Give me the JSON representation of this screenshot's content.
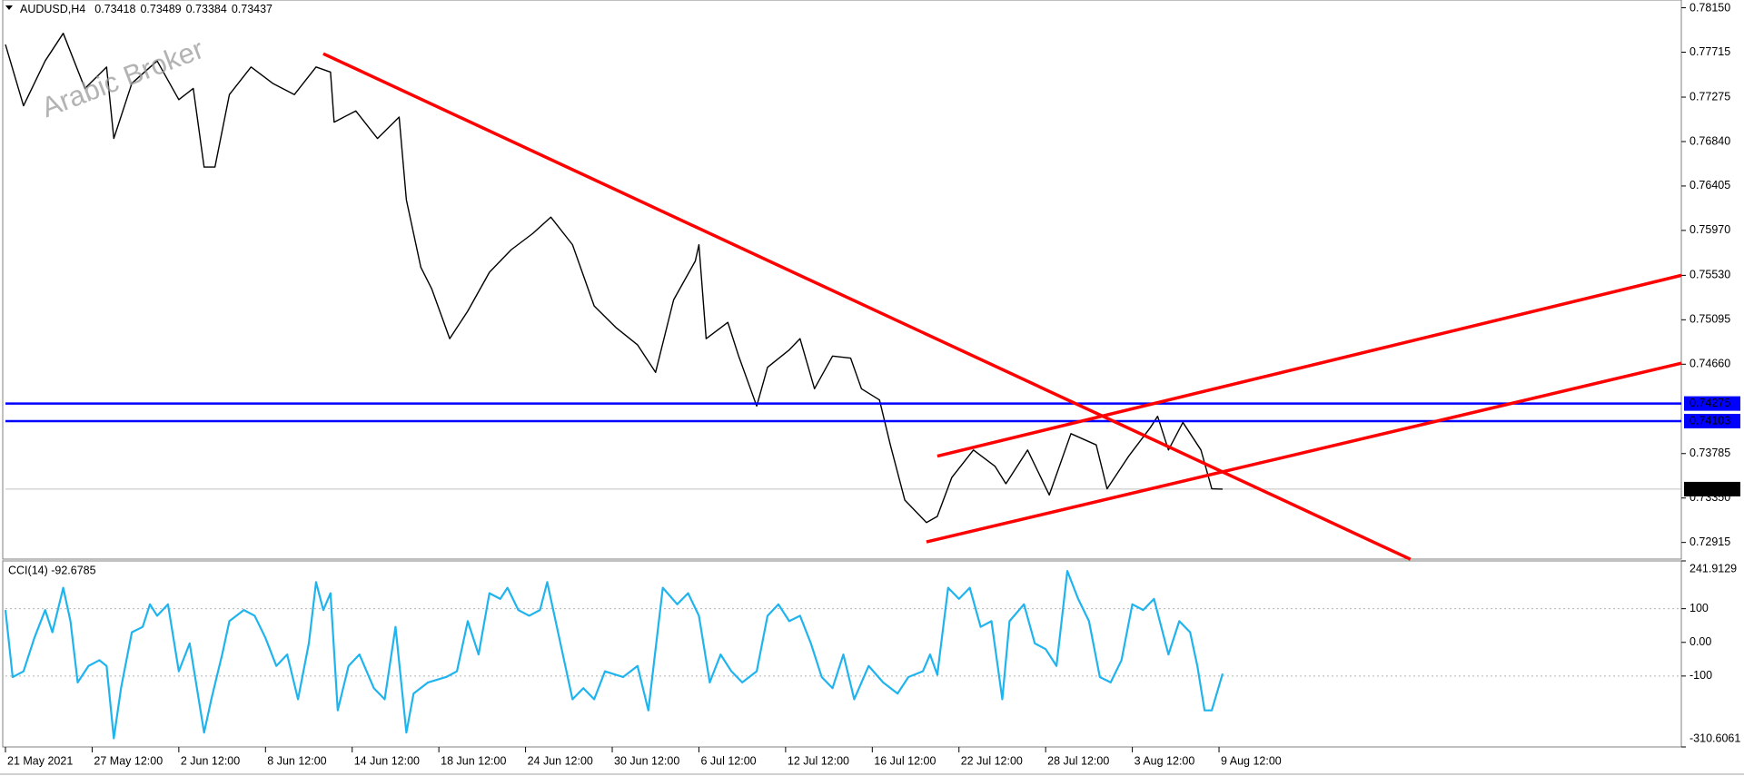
{
  "chart_data": [
    {
      "type": "line",
      "symbol": "AUDUSD,H4",
      "header_values": [
        0.73418,
        0.73489,
        0.73384,
        0.73437
      ],
      "watermark": "Arabic Broker",
      "x": [
        0,
        5,
        11,
        16,
        22,
        28,
        30,
        35,
        42,
        48,
        52,
        55,
        58,
        62,
        68,
        74,
        80,
        86,
        90,
        91,
        97,
        103,
        109,
        111,
        115,
        118,
        123,
        128,
        134,
        140,
        146,
        151,
        157,
        163,
        169,
        175,
        180,
        185,
        191,
        192,
        194,
        200,
        203,
        208,
        211,
        217,
        220,
        224,
        229,
        234,
        237,
        242,
        245,
        249,
        255,
        258,
        262,
        268,
        274,
        277,
        283,
        289,
        295,
        302,
        305,
        311,
        317,
        319,
        322,
        326,
        331,
        334,
        337
      ],
      "series": [
        {
          "color": "#000000",
          "values": [
            0.7779,
            0.7719,
            0.7763,
            0.779,
            0.7736,
            0.7757,
            0.7687,
            0.7741,
            0.7763,
            0.7725,
            0.7736,
            0.7659,
            0.7659,
            0.773,
            0.7757,
            0.7741,
            0.773,
            0.7757,
            0.7752,
            0.7703,
            0.7714,
            0.7687,
            0.7708,
            0.7627,
            0.7561,
            0.754,
            0.7491,
            0.7518,
            0.7556,
            0.7578,
            0.7594,
            0.761,
            0.7583,
            0.7523,
            0.7502,
            0.7485,
            0.7458,
            0.7529,
            0.7567,
            0.7583,
            0.7491,
            0.7507,
            0.7474,
            0.7425,
            0.7463,
            0.748,
            0.7491,
            0.7442,
            0.7474,
            0.7472,
            0.7442,
            0.7431,
            0.7387,
            0.7333,
            0.7311,
            0.7317,
            0.7355,
            0.7382,
            0.7366,
            0.7349,
            0.7382,
            0.7338,
            0.7398,
            0.7387,
            0.7344,
            0.7376,
            0.7404,
            0.7415,
            0.7382,
            0.7409,
            0.7382,
            0.7344,
            0.73437
          ]
        }
      ],
      "xlim": [
        0,
        464
      ],
      "ylim": [
        0.72752,
        0.78226
      ],
      "yticks": [
        {
          "value": 0.7815,
          "label": "0.78150"
        },
        0.77715,
        0.77275,
        {
          "value": 0.7684,
          "label": "0.76840"
        },
        0.76405,
        {
          "value": 0.7597,
          "label": "0.75970"
        },
        {
          "value": 0.7553,
          "label": "0.75530"
        },
        0.75095,
        {
          "value": 0.7466,
          "label": "0.74660"
        },
        0.73785,
        {
          "value": 0.7335,
          "label": "0.73350"
        },
        0.72915
      ],
      "hlines": [
        {
          "value": 0.74275,
          "color": "#0000ff"
        },
        {
          "value": 0.74103,
          "color": "#0000ff"
        }
      ],
      "current_price": {
        "value": 0.73437,
        "color": "#c0c0c0"
      },
      "trendlines": [
        {
          "color": "#ff0000",
          "x": [
            88,
            389
          ],
          "values": [
            0.777,
            0.7275
          ]
        },
        {
          "color": "#ff0000",
          "x": [
            258,
            464
          ],
          "values": [
            0.7376,
            0.7553
          ]
        },
        {
          "color": "#ff0000",
          "x": [
            255,
            464
          ],
          "values": [
            0.7292,
            0.7467
          ]
        }
      ]
    },
    {
      "type": "line",
      "title": "CCI(14) -92.6785",
      "x": [
        0,
        2,
        5,
        8,
        11,
        13,
        16,
        18,
        20,
        23,
        26,
        28,
        30,
        32,
        35,
        38,
        40,
        42,
        45,
        48,
        51,
        55,
        57,
        60,
        62,
        66,
        69,
        72,
        75,
        78,
        81,
        84,
        86,
        88,
        90,
        92,
        95,
        98,
        102,
        105,
        108,
        111,
        113,
        117,
        122,
        125,
        128,
        131,
        134,
        137,
        139,
        142,
        145,
        148,
        150,
        154,
        157,
        160,
        163,
        166,
        171,
        175,
        178,
        182,
        186,
        189,
        192,
        195,
        198,
        201,
        204,
        208,
        211,
        214,
        217,
        220,
        223,
        226,
        229,
        232,
        235,
        239,
        243,
        247,
        250,
        254,
        256,
        258,
        261,
        264,
        267,
        270,
        273,
        276,
        278,
        282,
        285,
        288,
        291,
        294,
        297,
        300,
        303,
        306,
        309,
        312,
        315,
        318,
        322,
        325,
        328,
        330,
        332,
        334,
        337
      ],
      "series": [
        {
          "color": "#1fb4ee",
          "values": [
            96,
            -103,
            -86,
            13,
            96,
            30,
            162,
            63,
            -119,
            -70,
            -53,
            -70,
            -285,
            -136,
            30,
            46,
            113,
            79,
            113,
            -86,
            -3,
            -268,
            -169,
            -36,
            63,
            96,
            79,
            13,
            -70,
            -36,
            -169,
            -3,
            179,
            96,
            146,
            -202,
            -70,
            -36,
            -136,
            -169,
            46,
            -268,
            -152,
            -119,
            -103,
            -86,
            63,
            -36,
            146,
            129,
            162,
            96,
            79,
            96,
            179,
            -20,
            -169,
            -136,
            -169,
            -86,
            -103,
            -70,
            -202,
            162,
            113,
            146,
            79,
            -119,
            -36,
            -86,
            -119,
            -86,
            79,
            113,
            63,
            79,
            -3,
            -103,
            -136,
            -36,
            -169,
            -70,
            -119,
            -152,
            -103,
            -86,
            -36,
            -96,
            162,
            129,
            162,
            46,
            63,
            -169,
            63,
            113,
            -3,
            -20,
            -70,
            212,
            129,
            63,
            -103,
            -119,
            -53,
            113,
            96,
            129,
            -36,
            63,
            30,
            -70,
            -202,
            -202,
            -92.6785
          ]
        }
      ],
      "xlim": [
        0,
        464
      ],
      "ylim": [
        -310.6061,
        241.9129
      ],
      "yticks": [
        241.9129,
        100,
        {
          "value": 0,
          "label": "0.00"
        },
        -100,
        -310.6061
      ],
      "levels": [
        100,
        -100
      ],
      "xticks": [
        {
          "value": 0,
          "label": "21 May 2021"
        },
        {
          "value": 24,
          "label": "27 May 12:00"
        },
        {
          "value": 48,
          "label": "2 Jun 12:00"
        },
        {
          "value": 72,
          "label": "8 Jun 12:00"
        },
        {
          "value": 96,
          "label": "14 Jun 12:00"
        },
        {
          "value": 120,
          "label": "18 Jun 12:00"
        },
        {
          "value": 144,
          "label": "24 Jun 12:00"
        },
        {
          "value": 168,
          "label": "30 Jun 12:00"
        },
        {
          "value": 192,
          "label": "6 Jul 12:00"
        },
        {
          "value": 216,
          "label": "12 Jul 12:00"
        },
        {
          "value": 240,
          "label": "16 Jul 12:00"
        },
        {
          "value": 264,
          "label": "22 Jul 12:00"
        },
        {
          "value": 288,
          "label": "28 Jul 12:00"
        },
        {
          "value": 312,
          "label": "3 Aug 12:00"
        },
        {
          "value": 336,
          "label": "9 Aug 12:00"
        }
      ]
    }
  ]
}
